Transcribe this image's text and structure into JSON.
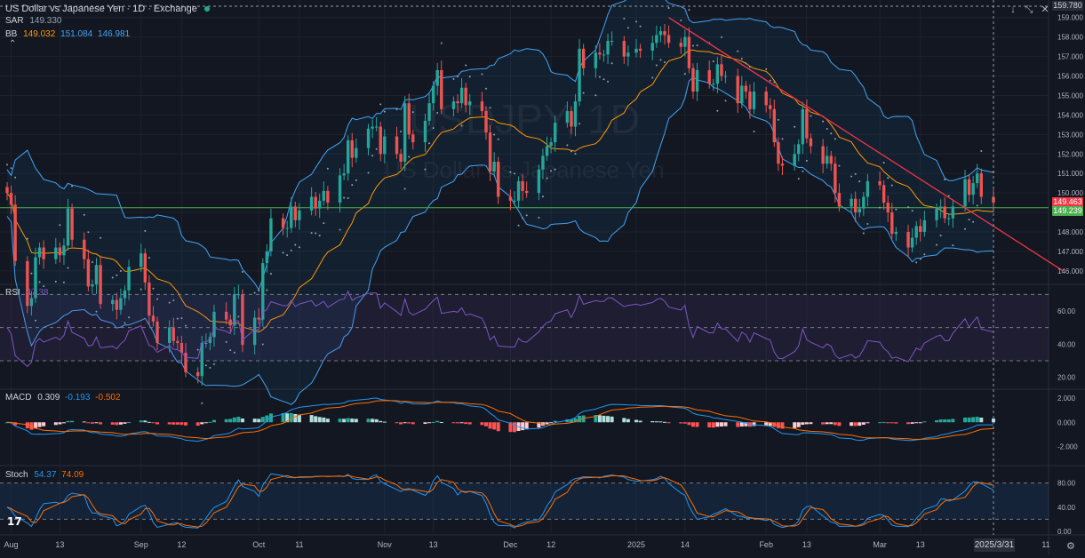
{
  "header": {
    "title": "US Dollar vs Japanese Yen · 1D · Exchange",
    "sar_name": "SAR",
    "sar_value": "149.330",
    "bb_name": "BB",
    "bb_basis": "149.032",
    "bb_upper": "151.084",
    "bb_lower": "146.981"
  },
  "watermark": {
    "symbol": "USDJPY, 1D",
    "description": "US Dollar vs Japanese Yen"
  },
  "top_buttons": [
    "↓",
    "⤡",
    "✕",
    "…"
  ],
  "colors": {
    "bg": "#131722",
    "up": "#26a69a",
    "down": "#ef5350",
    "bb": "#2962ff",
    "bb_line": "#42a5f5",
    "basis": "#ff9800",
    "sar": "#90a4ae",
    "hline": "#4caf50",
    "trend": "#f23645",
    "rsi": "#7e57c2",
    "macd": "#2196f3",
    "signal": "#ff6d00",
    "stoch_k": "#2196f3",
    "stoch_d": "#ff6d00"
  },
  "price_tags": {
    "last": "149.463",
    "hline": "149.239",
    "top": "159.780"
  },
  "rsi": {
    "name": "RSI",
    "value": "47.38",
    "ticks": [
      "60.00",
      "40.00",
      "20.00"
    ]
  },
  "macd": {
    "name": "MACD",
    "value": "0.309",
    "signal": "-0.193",
    "hist": "-0.502",
    "ticks": [
      "2.000",
      "0.000",
      "-2.000"
    ]
  },
  "stoch": {
    "name": "Stoch",
    "k": "54.37",
    "d": "74.09",
    "ticks": [
      "80.00",
      "40.00",
      "0.00"
    ]
  },
  "time_axis": {
    "labels": [
      "Aug",
      "13",
      "Sep",
      "12",
      "Oct",
      "11",
      "Nov",
      "13",
      "Dec",
      "12",
      "2025",
      "14",
      "Feb",
      "13",
      "Mar",
      "13",
      "11"
    ],
    "cursor_date": "2025/3/31"
  },
  "chart_data": {
    "type": "candlestick",
    "title": "US Dollar vs Japanese Yen · 1D · Exchange",
    "price_axis": {
      "ticks": [
        159.0,
        158.0,
        157.0,
        156.0,
        155.0,
        154.0,
        153.0,
        152.0,
        151.0,
        150.0,
        149.0,
        148.0,
        147.0,
        146.0
      ],
      "range": [
        145.4,
        159.9
      ]
    },
    "horizontal_line": 149.239,
    "trendline": {
      "from": {
        "date": "2025-01-10",
        "price": 159.0
      },
      "to": {
        "date": "2025-04-04",
        "price": 146.8
      }
    },
    "last_price": 149.463,
    "closes": [
      [
        "2024-07-31",
        150.0
      ],
      [
        "2024-08-01",
        149.4
      ],
      [
        "2024-08-02",
        146.5
      ],
      [
        "2024-08-05",
        144.2
      ],
      [
        "2024-08-06",
        144.6
      ],
      [
        "2024-08-07",
        146.7
      ],
      [
        "2024-08-08",
        147.2
      ],
      [
        "2024-08-09",
        146.6
      ],
      [
        "2024-08-12",
        147.2
      ],
      [
        "2024-08-13",
        146.8
      ],
      [
        "2024-08-14",
        147.3
      ],
      [
        "2024-08-15",
        149.2
      ],
      [
        "2024-08-16",
        147.6
      ],
      [
        "2024-08-19",
        146.6
      ],
      [
        "2024-08-20",
        145.2
      ],
      [
        "2024-08-21",
        145.3
      ],
      [
        "2024-08-22",
        146.3
      ],
      [
        "2024-08-23",
        144.3
      ],
      [
        "2024-08-26",
        144.5
      ],
      [
        "2024-08-27",
        144.0
      ],
      [
        "2024-08-28",
        144.6
      ],
      [
        "2024-08-29",
        145.0
      ],
      [
        "2024-08-30",
        146.2
      ],
      [
        "2024-09-02",
        146.9
      ],
      [
        "2024-09-03",
        145.4
      ],
      [
        "2024-09-04",
        143.7
      ],
      [
        "2024-09-05",
        143.4
      ],
      [
        "2024-09-06",
        142.3
      ],
      [
        "2024-09-09",
        143.1
      ],
      [
        "2024-09-10",
        142.4
      ],
      [
        "2024-09-11",
        142.3
      ],
      [
        "2024-09-12",
        141.8
      ],
      [
        "2024-09-13",
        140.8
      ],
      [
        "2024-09-16",
        140.6
      ],
      [
        "2024-09-17",
        142.3
      ],
      [
        "2024-09-18",
        142.3
      ],
      [
        "2024-09-19",
        142.6
      ],
      [
        "2024-09-20",
        143.9
      ],
      [
        "2024-09-23",
        143.5
      ],
      [
        "2024-09-24",
        143.2
      ],
      [
        "2024-09-25",
        144.8
      ],
      [
        "2024-09-26",
        144.8
      ],
      [
        "2024-09-27",
        142.2
      ],
      [
        "2024-09-30",
        143.6
      ],
      [
        "2024-10-01",
        143.5
      ],
      [
        "2024-10-02",
        146.4
      ],
      [
        "2024-10-03",
        147.0
      ],
      [
        "2024-10-04",
        148.7
      ],
      [
        "2024-10-07",
        148.2
      ],
      [
        "2024-10-08",
        148.2
      ],
      [
        "2024-10-09",
        149.3
      ],
      [
        "2024-10-10",
        148.6
      ],
      [
        "2024-10-11",
        149.1
      ],
      [
        "2024-10-14",
        149.8
      ],
      [
        "2024-10-15",
        149.2
      ],
      [
        "2024-10-16",
        149.6
      ],
      [
        "2024-10-17",
        150.1
      ],
      [
        "2024-10-18",
        149.5
      ],
      [
        "2024-10-21",
        150.9
      ],
      [
        "2024-10-22",
        151.0
      ],
      [
        "2024-10-23",
        152.7
      ],
      [
        "2024-10-24",
        151.8
      ],
      [
        "2024-10-25",
        152.3
      ],
      [
        "2024-10-28",
        153.3
      ],
      [
        "2024-10-29",
        153.4
      ],
      [
        "2024-10-30",
        153.4
      ],
      [
        "2024-10-31",
        152.0
      ],
      [
        "2024-11-01",
        152.9
      ],
      [
        "2024-11-04",
        152.0
      ],
      [
        "2024-11-05",
        151.6
      ],
      [
        "2024-11-06",
        154.6
      ],
      [
        "2024-11-07",
        153.0
      ],
      [
        "2024-11-08",
        152.6
      ],
      [
        "2024-11-11",
        153.7
      ],
      [
        "2024-11-12",
        154.6
      ],
      [
        "2024-11-13",
        155.5
      ],
      [
        "2024-11-14",
        156.3
      ],
      [
        "2024-11-15",
        154.3
      ],
      [
        "2024-11-18",
        154.7
      ],
      [
        "2024-11-19",
        154.6
      ],
      [
        "2024-11-20",
        155.4
      ],
      [
        "2024-11-21",
        154.5
      ],
      [
        "2024-11-22",
        154.7
      ],
      [
        "2024-11-25",
        154.2
      ],
      [
        "2024-11-26",
        153.1
      ],
      [
        "2024-11-27",
        151.1
      ],
      [
        "2024-11-28",
        151.6
      ],
      [
        "2024-11-29",
        149.8
      ],
      [
        "2024-12-02",
        149.6
      ],
      [
        "2024-12-03",
        149.6
      ],
      [
        "2024-12-04",
        150.6
      ],
      [
        "2024-12-05",
        150.1
      ],
      [
        "2024-12-06",
        150.0
      ],
      [
        "2024-12-09",
        151.2
      ],
      [
        "2024-12-10",
        151.9
      ],
      [
        "2024-12-11",
        152.4
      ],
      [
        "2024-12-12",
        152.6
      ],
      [
        "2024-12-13",
        153.6
      ],
      [
        "2024-12-16",
        154.2
      ],
      [
        "2024-12-17",
        153.4
      ],
      [
        "2024-12-18",
        154.7
      ],
      [
        "2024-12-19",
        157.4
      ],
      [
        "2024-12-20",
        156.4
      ],
      [
        "2024-12-23",
        157.2
      ],
      [
        "2024-12-24",
        157.1
      ],
      [
        "2024-12-25",
        157.1
      ],
      [
        "2024-12-26",
        157.8
      ],
      [
        "2024-12-27",
        157.8
      ],
      [
        "2024-12-30",
        157.0
      ],
      [
        "2024-12-31",
        157.2
      ],
      [
        "2025-01-02",
        157.4
      ],
      [
        "2025-01-03",
        157.3
      ],
      [
        "2025-01-06",
        157.7
      ],
      [
        "2025-01-07",
        158.1
      ],
      [
        "2025-01-08",
        158.3
      ],
      [
        "2025-01-09",
        158.1
      ],
      [
        "2025-01-10",
        157.7
      ],
      [
        "2025-01-13",
        157.5
      ],
      [
        "2025-01-14",
        158.0
      ],
      [
        "2025-01-15",
        156.4
      ],
      [
        "2025-01-16",
        155.2
      ],
      [
        "2025-01-17",
        156.3
      ],
      [
        "2025-01-20",
        155.6
      ],
      [
        "2025-01-21",
        155.6
      ],
      [
        "2025-01-22",
        156.6
      ],
      [
        "2025-01-23",
        156.0
      ],
      [
        "2025-01-24",
        156.0
      ],
      [
        "2025-01-27",
        154.6
      ],
      [
        "2025-01-28",
        155.5
      ],
      [
        "2025-01-29",
        155.2
      ],
      [
        "2025-01-30",
        154.3
      ],
      [
        "2025-01-31",
        155.2
      ],
      [
        "2025-02-03",
        154.5
      ],
      [
        "2025-02-04",
        154.3
      ],
      [
        "2025-02-05",
        152.6
      ],
      [
        "2025-02-06",
        151.5
      ],
      [
        "2025-02-07",
        151.4
      ],
      [
        "2025-02-10",
        152.0
      ],
      [
        "2025-02-11",
        152.5
      ],
      [
        "2025-02-12",
        154.3
      ],
      [
        "2025-02-13",
        152.8
      ],
      [
        "2025-02-14",
        152.4
      ],
      [
        "2025-02-17",
        151.5
      ],
      [
        "2025-02-18",
        151.9
      ],
      [
        "2025-02-19",
        151.5
      ],
      [
        "2025-02-20",
        150.0
      ],
      [
        "2025-02-21",
        149.3
      ],
      [
        "2025-02-24",
        149.7
      ],
      [
        "2025-02-25",
        149.0
      ],
      [
        "2025-02-26",
        149.2
      ],
      [
        "2025-02-27",
        149.8
      ],
      [
        "2025-02-28",
        150.6
      ],
      [
        "2025-03-03",
        150.4
      ],
      [
        "2025-03-04",
        149.5
      ],
      [
        "2025-03-05",
        149.0
      ],
      [
        "2025-03-06",
        147.9
      ],
      [
        "2025-03-07",
        148.0
      ],
      [
        "2025-03-10",
        147.2
      ],
      [
        "2025-03-11",
        147.7
      ],
      [
        "2025-03-12",
        148.3
      ],
      [
        "2025-03-13",
        148.0
      ],
      [
        "2025-03-14",
        148.6
      ],
      [
        "2025-03-17",
        149.2
      ],
      [
        "2025-03-18",
        149.3
      ],
      [
        "2025-03-19",
        148.7
      ],
      [
        "2025-03-20",
        148.7
      ],
      [
        "2025-03-21",
        149.3
      ],
      [
        "2025-03-24",
        150.7
      ],
      [
        "2025-03-25",
        149.9
      ],
      [
        "2025-03-26",
        150.5
      ],
      [
        "2025-03-27",
        151.0
      ],
      [
        "2025-03-28",
        149.8
      ],
      [
        "2025-03-31",
        149.5
      ]
    ]
  }
}
